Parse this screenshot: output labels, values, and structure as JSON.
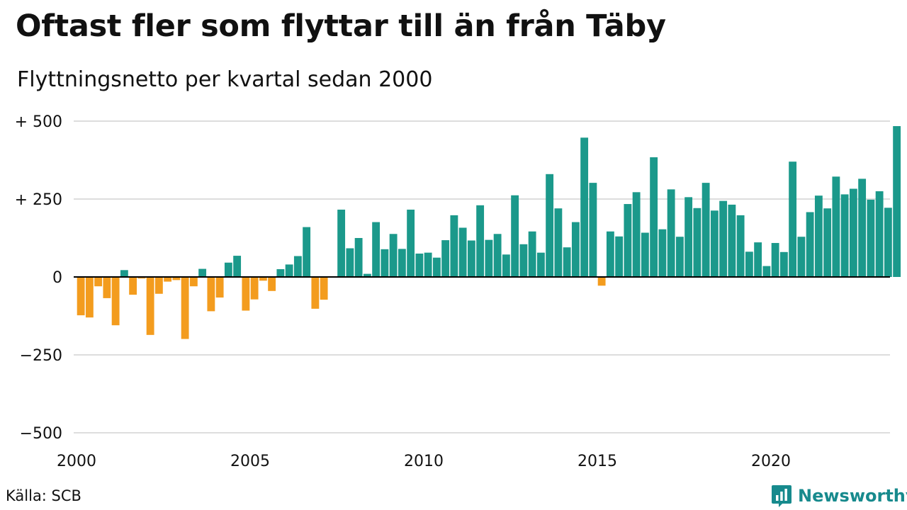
{
  "title": "Oftast fler som flyttar till än från Täby",
  "subtitle": "Flyttningsnetto per kvartal sedan 2000",
  "source": "Källa: SCB",
  "brand": {
    "name": "Newsworthy",
    "icon": "newsworthy-logo-icon"
  },
  "colors": {
    "positive": "#1b998b",
    "negative": "#f39c1e",
    "grid": "#dddddd",
    "axis": "#000000"
  },
  "chart_data": {
    "type": "bar",
    "title": "Oftast fler som flyttar till än från Täby",
    "subtitle": "Flyttningsnetto per kvartal sedan 2000",
    "xlabel": "",
    "ylabel": "",
    "ylim": [
      -500,
      500
    ],
    "y_ticks": [
      500,
      250,
      0,
      -250,
      -500
    ],
    "y_tick_labels": [
      "+ 500",
      "+ 250",
      "0",
      "−250",
      "−500"
    ],
    "x_ticks": [
      "2000",
      "2005",
      "2010",
      "2015",
      "2020"
    ],
    "grid": true,
    "legend": "none",
    "x_start": "2000 Q1",
    "values": [
      -123,
      -130,
      -30,
      -68,
      -155,
      22,
      -57,
      -5,
      -186,
      -54,
      -15,
      -10,
      -199,
      -30,
      26,
      -110,
      -66,
      46,
      68,
      -108,
      -72,
      -12,
      -45,
      25,
      40,
      67,
      160,
      -102,
      -73,
      0,
      216,
      92,
      125,
      10,
      176,
      89,
      138,
      90,
      216,
      75,
      78,
      62,
      118,
      198,
      158,
      117,
      230,
      119,
      138,
      72,
      262,
      105,
      146,
      78,
      330,
      220,
      95,
      176,
      447,
      302,
      -28,
      146,
      130,
      234,
      272,
      142,
      384,
      153,
      281,
      129,
      256,
      221,
      302,
      213,
      244,
      232,
      198,
      81,
      111,
      35,
      109,
      80,
      370,
      129,
      208,
      261,
      220,
      322,
      265,
      283,
      315,
      248,
      275,
      222,
      484
    ]
  }
}
